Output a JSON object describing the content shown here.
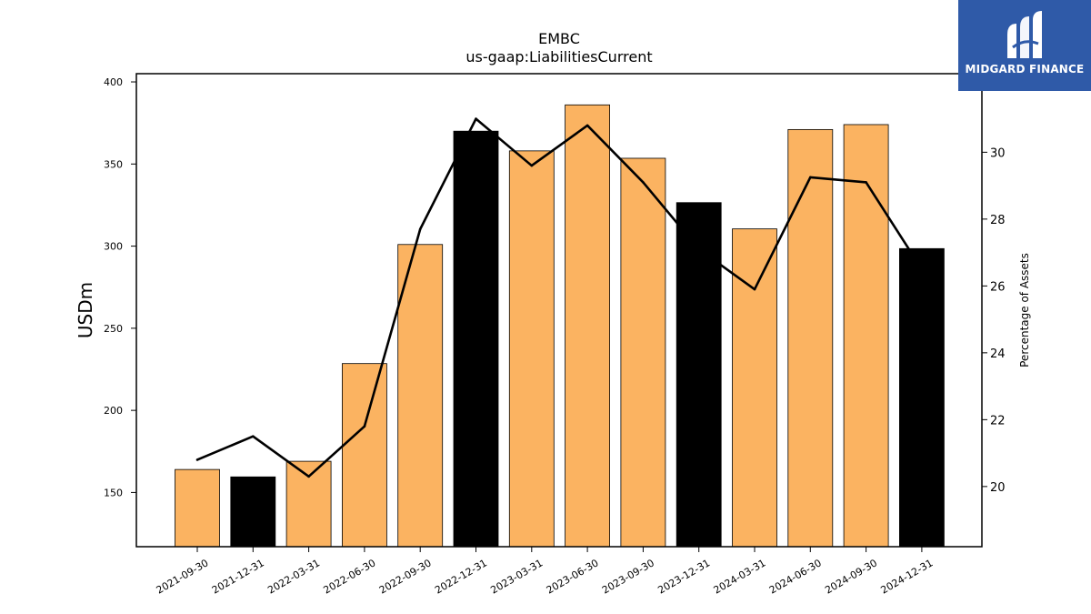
{
  "chart_data": {
    "type": "bar",
    "title": "EMBC",
    "subtitle": "us-gaap:LiabilitiesCurrent",
    "ylabel": "USDm",
    "y2label": "Percentage of Assets",
    "categories": [
      "2021-09-30",
      "2021-12-31",
      "2022-03-31",
      "2022-06-30",
      "2022-09-30",
      "2022-12-31",
      "2023-03-31",
      "2023-06-30",
      "2023-09-30",
      "2023-12-31",
      "2024-03-31",
      "2024-06-30",
      "2024-09-30",
      "2024-12-31"
    ],
    "series": [
      {
        "type": "bar",
        "axis": "left",
        "values": [
          164,
          159.5,
          169,
          228.5,
          301,
          370,
          358,
          386,
          353.5,
          326.5,
          310.5,
          371,
          374,
          298.5
        ],
        "highlight": [
          false,
          true,
          false,
          false,
          false,
          true,
          false,
          false,
          false,
          true,
          false,
          false,
          false,
          true
        ]
      },
      {
        "type": "line",
        "axis": "right",
        "values": [
          20.8,
          21.5,
          20.3,
          21.8,
          27.7,
          31.0,
          29.6,
          30.8,
          29.1,
          27.1,
          25.9,
          29.25,
          29.1,
          26.5
        ]
      }
    ],
    "ylim": [
      117,
      405
    ],
    "y2lim": [
      18.2,
      32.35
    ],
    "yticks": [
      150,
      200,
      250,
      300,
      350,
      400
    ],
    "y2ticks": [
      20,
      22,
      24,
      26,
      28,
      30
    ],
    "grid": false,
    "colors": {
      "bar": "#fbb361",
      "bar_highlight": "#000000",
      "line": "#000000"
    }
  },
  "logo": {
    "text": "MIDGARD FINANCE",
    "icon": "midgard-logo-icon",
    "background": "#2f5aa8"
  }
}
